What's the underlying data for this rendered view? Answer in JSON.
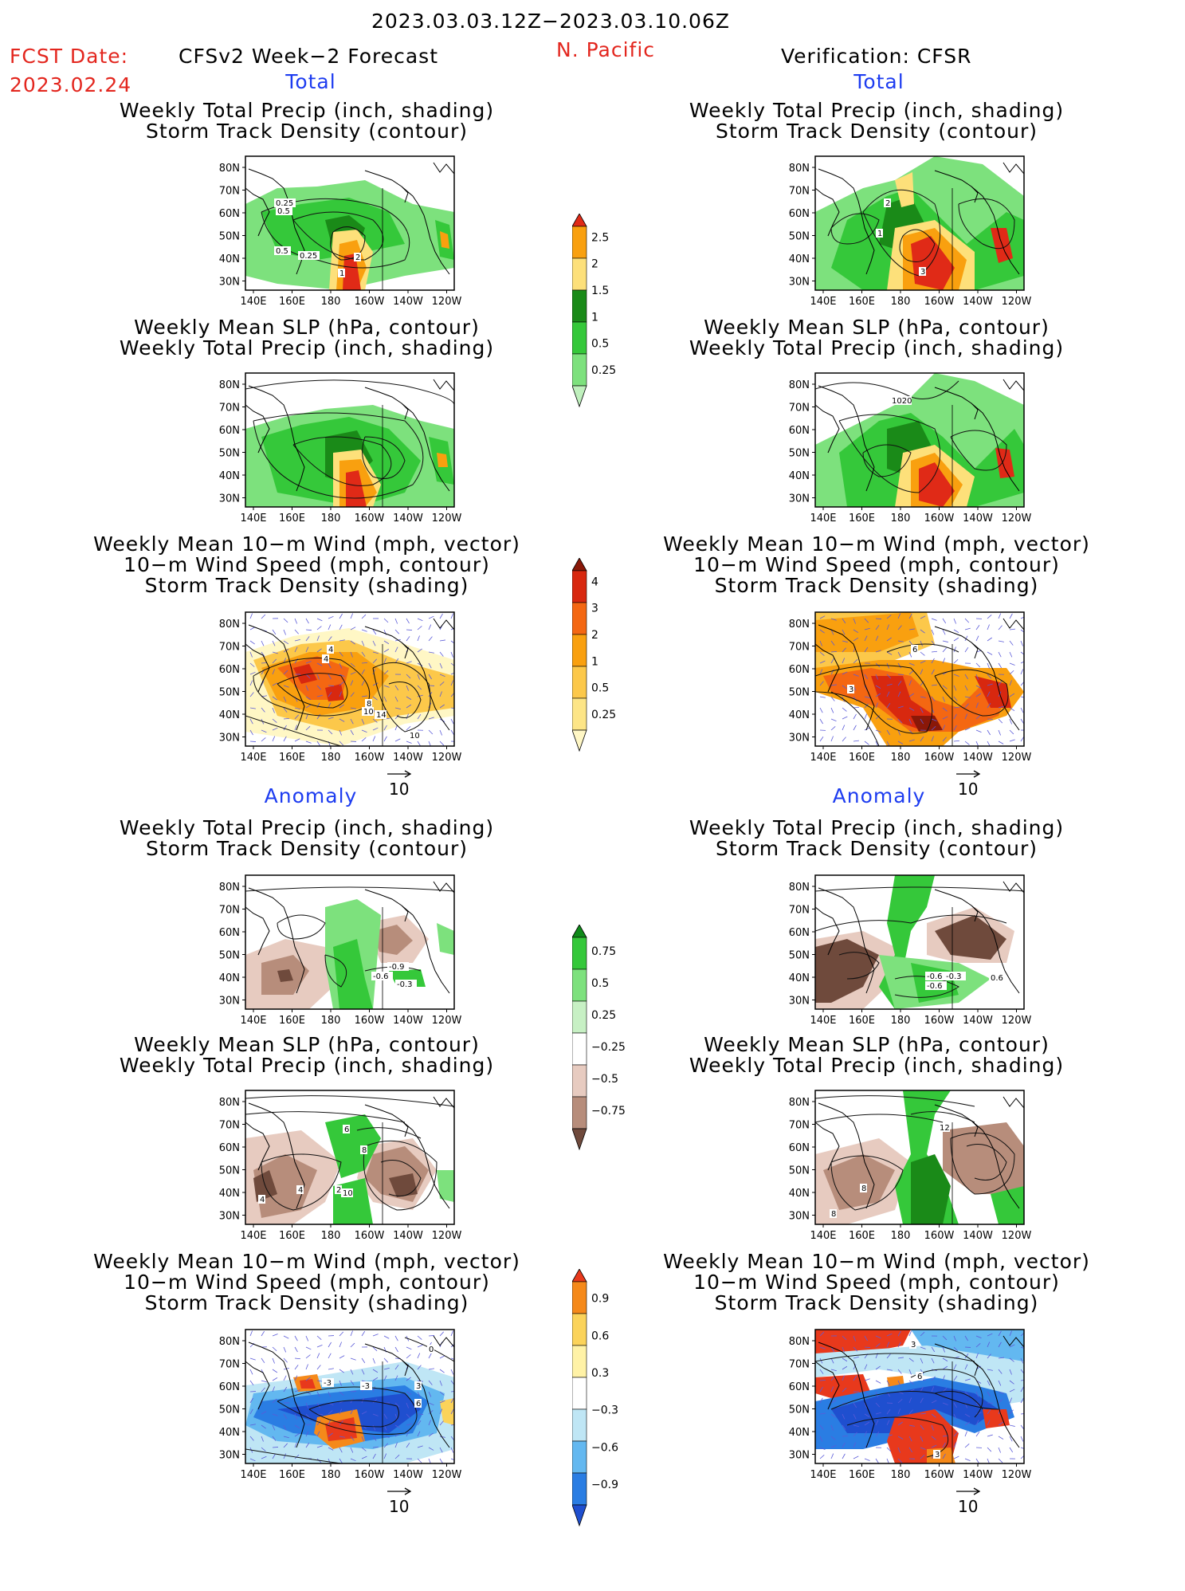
{
  "header": {
    "date_range": "2023.03.03.12Z−2023.03.10.06Z",
    "fcst_label": "FCST Date:",
    "fcst_date": "2023.02.24",
    "model": "CFSv2 Week−2 Forecast",
    "region": "N. Pacific",
    "verification": "Verification: CFSR"
  },
  "sections": {
    "total": "Total",
    "anomaly": "Anomaly"
  },
  "titles": {
    "precip_storm": [
      "Weekly Total Precip (inch, shading)",
      "Storm Track Density (contour)"
    ],
    "slp_precip": [
      "Weekly Mean SLP (hPa, contour)",
      "Weekly Total Precip (inch, shading)"
    ],
    "wind_storm": [
      "Weekly Mean 10−m Wind (mph, vector)",
      "10−m Wind Speed (mph, contour)",
      "Storm Track Density (shading)"
    ]
  },
  "axes": {
    "lat_ticks": [
      "80N",
      "70N",
      "60N",
      "50N",
      "40N",
      "30N"
    ],
    "lon_ticks": [
      "140E",
      "160E",
      "180",
      "160W",
      "140W",
      "120W"
    ]
  },
  "vector_ref": "10",
  "colorbars": {
    "precip_total": {
      "labels": [
        "2.5",
        "2",
        "1.5",
        "1",
        "0.5",
        "0.25"
      ],
      "colors": [
        "#e02a17",
        "#f9a00f",
        "#fde07a",
        "#1a8a18",
        "#35c83a",
        "#7de17d",
        "#bff0bd"
      ]
    },
    "storm_total": {
      "labels": [
        "4",
        "3",
        "2",
        "1",
        "0.5",
        "0.25"
      ],
      "colors": [
        "#8a1808",
        "#d8280f",
        "#f46712",
        "#f9a00f",
        "#fcc84a",
        "#fde586",
        "#fff7c5"
      ]
    },
    "precip_anom": {
      "labels": [
        "0.75",
        "0.5",
        "0.25",
        "−0.25",
        "−0.5",
        "−0.75"
      ],
      "colors": [
        "#0f8a19",
        "#35c83a",
        "#7de17d",
        "#c7f0c4",
        "#ffffff",
        "#e7cbc0",
        "#b78d7b",
        "#6f4a3c"
      ]
    },
    "storm_anom": {
      "labels": [
        "0.9",
        "0.6",
        "0.3",
        "−0.3",
        "−0.6",
        "−0.9"
      ],
      "colors": [
        "#e8391c",
        "#f5891a",
        "#fbd35a",
        "#fff2a6",
        "#ffffff",
        "#bfe6f5",
        "#63b8f0",
        "#2a7de3",
        "#1f4fcf"
      ]
    }
  },
  "chart_data": [
    {
      "type": "heatmap",
      "id": "fcst-total-precip",
      "title": "Weekly Total Precip (inch, shading) / Storm Track Density (contour)",
      "contour_labels": [
        "0.25",
        "0.5",
        "0.5",
        "0.25",
        "1",
        "2"
      ]
    },
    {
      "type": "heatmap",
      "id": "verif-total-precip",
      "title": "Weekly Total Precip (inch, shading) / Storm Track Density (contour)",
      "contour_labels": [
        "2",
        "1",
        "3"
      ]
    },
    {
      "type": "heatmap",
      "id": "fcst-total-slp",
      "title": "Weekly Mean SLP (hPa, contour) / Weekly Total Precip (inch, shading)",
      "contour_labels": []
    },
    {
      "type": "heatmap",
      "id": "verif-total-slp",
      "title": "Weekly Mean SLP (hPa, contour) / Weekly Total Precip (inch, shading)",
      "contour_labels": [
        "1020"
      ]
    },
    {
      "type": "heatmap",
      "id": "fcst-total-wind",
      "title": "Weekly Mean 10-m Wind (mph, vector) / 10-m Wind Speed (mph, contour) / Storm Track Density (shading)",
      "contour_labels": [
        "4",
        "4",
        "8",
        "10",
        "14",
        "10"
      ]
    },
    {
      "type": "heatmap",
      "id": "verif-total-wind",
      "title": "Weekly Mean 10-m Wind (mph, vector) / 10-m Wind Speed (mph, contour) / Storm Track Density (shading)",
      "contour_labels": [
        "6",
        "3"
      ]
    },
    {
      "type": "heatmap",
      "id": "fcst-anom-precip",
      "title": "Weekly Total Precip (inch, shading) / Storm Track Density (contour)",
      "contour_labels": [
        "-0.9",
        "-0.6",
        "-0.3"
      ]
    },
    {
      "type": "heatmap",
      "id": "verif-anom-precip",
      "title": "Weekly Total Precip (inch, shading) / Storm Track Density (contour)",
      "contour_labels": [
        "-0.6",
        "-0.3",
        "-0.6",
        "0.6"
      ]
    },
    {
      "type": "heatmap",
      "id": "fcst-anom-slp",
      "title": "Weekly Mean SLP (hPa, contour) / Weekly Total Precip (inch, shading)",
      "contour_labels": [
        "4",
        "4",
        "2",
        "6",
        "8",
        "10"
      ]
    },
    {
      "type": "heatmap",
      "id": "verif-anom-slp",
      "title": "Weekly Mean SLP (hPa, contour) / Weekly Total Precip (inch, shading)",
      "contour_labels": [
        "12",
        "8",
        "8"
      ]
    },
    {
      "type": "heatmap",
      "id": "fcst-anom-wind",
      "title": "Weekly Mean 10-m Wind (mph, vector) / 10-m Wind Speed (mph, contour) / Storm Track Density (shading)",
      "contour_labels": [
        "-3",
        "-3",
        "3",
        "6",
        "0"
      ]
    },
    {
      "type": "heatmap",
      "id": "verif-anom-wind",
      "title": "Weekly Mean 10-m Wind (mph, vector) / 10-m Wind Speed (mph, contour) / Storm Track Density (shading)",
      "contour_labels": [
        "3",
        "6",
        "3"
      ]
    }
  ]
}
